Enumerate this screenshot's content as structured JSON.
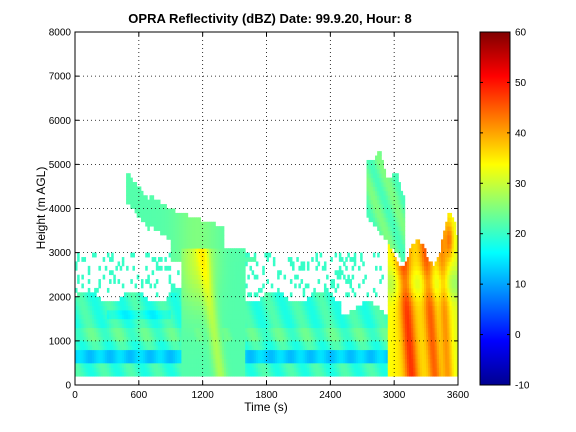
{
  "chart_data": {
    "type": "heatmap",
    "title": "OPRA Reflectivity (dBZ)  Date: 99.9.20, Hour: 8",
    "xlabel": "Time (s)",
    "ylabel": "Height (m AGL)",
    "xlim": [
      0,
      3600
    ],
    "ylim": [
      0,
      8000
    ],
    "x_ticks": [
      "0",
      "600",
      "1200",
      "1800",
      "2400",
      "3000",
      "3600"
    ],
    "y_ticks": [
      "0",
      "1000",
      "2000",
      "3000",
      "4000",
      "5000",
      "6000",
      "7000",
      "8000"
    ],
    "grid": true,
    "colorbar": {
      "range": [
        -10,
        60
      ],
      "ticks": [
        "-10",
        "0",
        "10",
        "20",
        "30",
        "40",
        "50",
        "60"
      ],
      "colormap": "jet"
    },
    "features": [
      {
        "name": "low-level echo layer",
        "t_start": 0,
        "t_end": 3600,
        "h_bottom": 250,
        "h_top": 2000,
        "dbz": 20
      },
      {
        "name": "weak band near 700 m",
        "t_start": 0,
        "t_end": 2950,
        "h_bottom": 550,
        "h_top": 750,
        "dbz": 13
      },
      {
        "name": "deep echo plume 1",
        "t_start": 1000,
        "t_end": 1600,
        "h_bottom": 250,
        "h_top": 4000,
        "dbz": 27
      },
      {
        "name": "convective core",
        "t_start": 2950,
        "t_end": 3600,
        "h_bottom": 250,
        "h_top": 3700,
        "dbz": 45
      },
      {
        "name": "upper plume",
        "t_start": 2750,
        "t_end": 3100,
        "h_bottom": 3000,
        "h_top": 5300,
        "dbz": 23
      }
    ]
  }
}
